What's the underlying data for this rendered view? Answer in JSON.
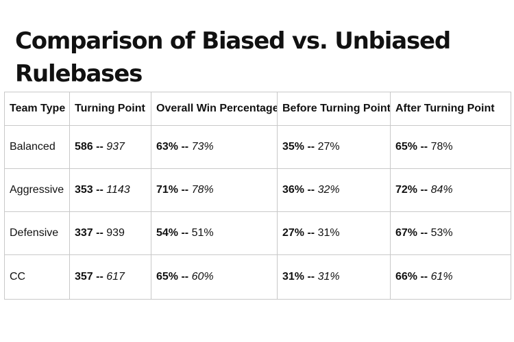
{
  "title": "Comparison of Biased vs. Unbiased Rulebases",
  "table": {
    "headers": [
      "Team Type",
      "Turning Point",
      "Overall Win Percentage",
      "Before Turning Point",
      "After Turning Point"
    ],
    "rows": [
      {
        "team": "Balanced",
        "cells": [
          {
            "biased": "586",
            "unbiased": "937",
            "unbiased_italic": true
          },
          {
            "biased": "63%",
            "unbiased": "73%",
            "unbiased_italic": true
          },
          {
            "biased": "35%",
            "unbiased": "27%",
            "unbiased_italic": false
          },
          {
            "biased": "65%",
            "unbiased": "78%",
            "unbiased_italic": false
          }
        ]
      },
      {
        "team": "Aggressive",
        "cells": [
          {
            "biased": "353",
            "unbiased": "1143",
            "unbiased_italic": true
          },
          {
            "biased": "71%",
            "unbiased": "78%",
            "unbiased_italic": true
          },
          {
            "biased": "36%",
            "unbiased": "32%",
            "unbiased_italic": true
          },
          {
            "biased": "72%",
            "unbiased": "84%",
            "unbiased_italic": true
          }
        ]
      },
      {
        "team": "Defensive",
        "cells": [
          {
            "biased": "337",
            "unbiased": "939",
            "unbiased_italic": false
          },
          {
            "biased": "54%",
            "unbiased": "51%",
            "unbiased_italic": false
          },
          {
            "biased": "27%",
            "unbiased": "31%",
            "unbiased_italic": false
          },
          {
            "biased": "67%",
            "unbiased": "53%",
            "unbiased_italic": false
          }
        ]
      },
      {
        "team": "CC",
        "cells": [
          {
            "biased": "357",
            "unbiased": "617",
            "unbiased_italic": true
          },
          {
            "biased": "65%",
            "unbiased": "60%",
            "unbiased_italic": true
          },
          {
            "biased": "31%",
            "unbiased": "31%",
            "unbiased_italic": true
          },
          {
            "biased": "66%",
            "unbiased": "61%",
            "unbiased_italic": true
          }
        ]
      }
    ]
  }
}
